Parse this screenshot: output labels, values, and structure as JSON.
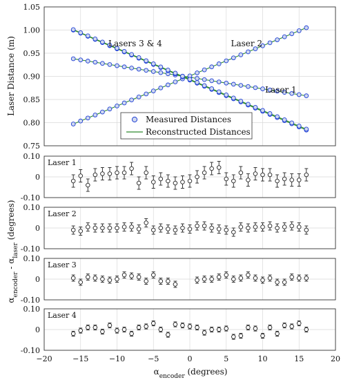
{
  "chart_data": [
    {
      "type": "scatter",
      "ylabel": "Laser Distance (m)",
      "ylim": [
        0.75,
        1.05
      ],
      "xlim": [
        -20,
        20
      ],
      "yticks": [
        "0.75",
        "0.80",
        "0.85",
        "0.90",
        "0.95",
        "1.00",
        "1.05"
      ],
      "yticks_values": [
        0.75,
        0.8,
        0.85,
        0.9,
        0.95,
        1.0,
        1.05
      ],
      "legend": {
        "placement": "bottom-center",
        "entries": [
          "Measured Distances",
          "Reconstructed Distances"
        ]
      },
      "annotations": [
        {
          "text": "Lasers 3 & 4",
          "x": -7.5,
          "y": 0.965
        },
        {
          "text": "Laser 2",
          "x": 7.8,
          "y": 0.965
        },
        {
          "text": "Laser 1",
          "x": 12.5,
          "y": 0.865
        }
      ],
      "colors": {
        "measured": "#1f3fd6",
        "reconstructed": "#2e8b2e"
      },
      "series": [
        {
          "key": "laser1",
          "x_start": -16,
          "x_end": 16,
          "count": 33,
          "y_start": 0.938,
          "y_end": 0.858
        },
        {
          "key": "laser2",
          "x_start": -16,
          "x_end": 16,
          "count": 33,
          "y_start": 0.797,
          "y_end": 1.005
        },
        {
          "key": "laser3",
          "x_start": -16,
          "x_end": 16,
          "count": 33,
          "y_start": 1.0,
          "y_end": 0.784
        },
        {
          "key": "laser4",
          "x_start": -16,
          "x_end": 16,
          "count": 33,
          "y_start": 1.001,
          "y_end": 0.786
        }
      ]
    },
    {
      "type": "scatter",
      "panel_label": "Laser 1",
      "ylim": [
        -0.1,
        0.1
      ],
      "yticks": [
        "-0.10",
        "0",
        "0.10"
      ],
      "yticks_values": [
        -0.1,
        0,
        0.1
      ],
      "x": [
        -16,
        -15,
        -14,
        -13,
        -12,
        -11,
        -10,
        -9,
        -8,
        -7,
        -6,
        -5,
        -4,
        -3,
        -2,
        -1,
        0,
        1,
        2,
        3,
        4,
        5,
        6,
        7,
        8,
        9,
        10,
        11,
        12,
        13,
        14,
        15,
        16
      ],
      "values": [
        -0.02,
        0.005,
        -0.04,
        0.01,
        0.015,
        0.015,
        0.02,
        0.02,
        0.04,
        -0.03,
        0.02,
        -0.025,
        -0.01,
        -0.02,
        -0.03,
        -0.025,
        -0.02,
        0.0,
        0.02,
        0.04,
        0.045,
        -0.01,
        -0.02,
        0.02,
        -0.015,
        0.015,
        0.01,
        0.01,
        -0.02,
        -0.01,
        -0.015,
        -0.015,
        0.01
      ],
      "error": 0.03
    },
    {
      "type": "scatter",
      "panel_label": "Laser 2",
      "ylim": [
        -0.1,
        0.1
      ],
      "yticks": [
        "-0.10",
        "0",
        "0.10"
      ],
      "yticks_values": [
        -0.1,
        0,
        0.1
      ],
      "x": [
        -16,
        -15,
        -14,
        -13,
        -12,
        -11,
        -10,
        -9,
        -8,
        -7,
        -6,
        -5,
        -4,
        -3,
        -2,
        -1,
        0,
        1,
        2,
        3,
        4,
        5,
        6,
        7,
        8,
        9,
        10,
        11,
        12,
        13,
        14,
        15,
        16
      ],
      "values": [
        -0.01,
        -0.015,
        0.005,
        0.0,
        0.0,
        0.0,
        0.0,
        0.005,
        0.005,
        -0.005,
        0.025,
        -0.01,
        0.0,
        -0.005,
        -0.01,
        0.0,
        -0.005,
        0.01,
        0.01,
        0.0,
        -0.005,
        -0.01,
        -0.02,
        0.005,
        0.0,
        0.005,
        0.005,
        0.01,
        0.0,
        0.005,
        0.01,
        0.005,
        -0.01
      ],
      "error": 0.02
    },
    {
      "type": "scatter",
      "panel_label": "Laser 3",
      "ylim": [
        -0.1,
        0.1
      ],
      "yticks": [
        "-0.10",
        "0",
        "0.10"
      ],
      "yticks_values": [
        -0.1,
        0,
        0.1
      ],
      "x": [
        -16,
        -15,
        -14,
        -13,
        -12,
        -11,
        -10,
        -9,
        -8,
        -7,
        -6,
        -5,
        -4,
        -3,
        -2,
        1,
        2,
        3,
        4,
        5,
        6,
        7,
        8,
        9,
        10,
        11,
        12,
        13,
        14,
        15,
        16
      ],
      "values": [
        0.005,
        -0.015,
        0.01,
        0.005,
        0.0,
        -0.005,
        0.0,
        0.02,
        0.015,
        0.01,
        -0.01,
        0.02,
        -0.01,
        -0.01,
        -0.025,
        -0.005,
        0.0,
        0.0,
        0.01,
        0.02,
        0.0,
        0.005,
        0.02,
        0.005,
        -0.005,
        0.005,
        -0.015,
        -0.015,
        0.01,
        0.005,
        0.005
      ],
      "error": 0.015
    },
    {
      "type": "scatter",
      "panel_label": "Laser 4",
      "ylim": [
        -0.1,
        0.1
      ],
      "yticks": [
        "-0.10",
        "0",
        "0.10"
      ],
      "yticks_values": [
        -0.1,
        0,
        0.1
      ],
      "x": [
        -16,
        -15,
        -14,
        -13,
        -12,
        -11,
        -10,
        -9,
        -8,
        -7,
        -6,
        -5,
        -4,
        -3,
        -2,
        -1,
        0,
        1,
        2,
        3,
        4,
        5,
        6,
        7,
        8,
        9,
        10,
        11,
        12,
        13,
        14,
        15,
        16
      ],
      "values": [
        -0.02,
        -0.005,
        0.01,
        0.01,
        -0.01,
        0.02,
        -0.005,
        0.0,
        -0.02,
        0.01,
        0.015,
        0.03,
        0.0,
        -0.025,
        0.025,
        0.02,
        0.015,
        0.01,
        -0.015,
        0.0,
        0.0,
        0.005,
        -0.035,
        -0.03,
        0.01,
        0.005,
        -0.03,
        0.01,
        -0.02,
        0.02,
        0.015,
        0.03,
        0.0
      ],
      "error": 0.012
    }
  ],
  "residual_axes": {
    "ylabel_main": "α",
    "ylabel_sub1": "encoder",
    "ylabel_mid": " - α",
    "ylabel_sub2": "laser",
    "ylabel_unit": " (degrees)",
    "xlabel_main": "α",
    "xlabel_sub": "encoder",
    "xlabel_unit": " (degrees)",
    "xticks": [
      "−20",
      "−15",
      "−10",
      "−5",
      "0",
      "5",
      "10",
      "15",
      "20"
    ],
    "xticks_values": [
      -20,
      -15,
      -10,
      -5,
      0,
      5,
      10,
      15,
      20
    ]
  }
}
